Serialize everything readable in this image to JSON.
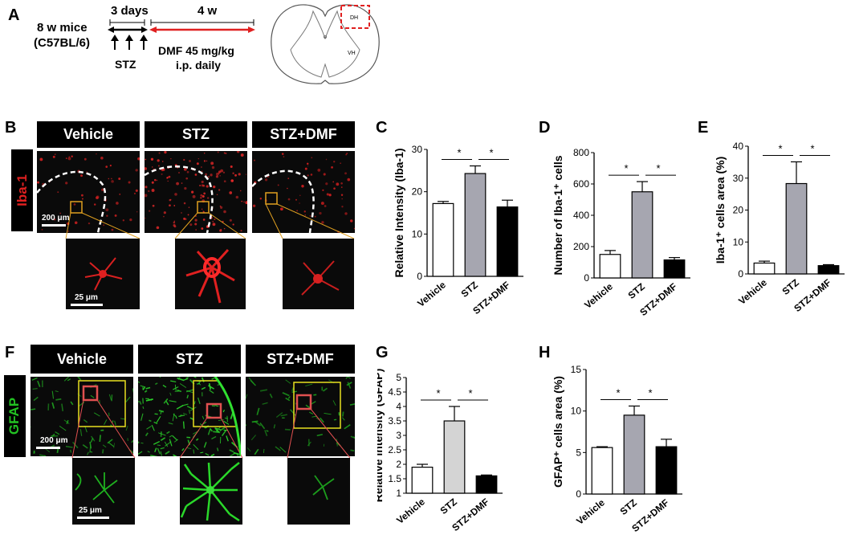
{
  "panels": {
    "A": "A",
    "B": "B",
    "C": "C",
    "D": "D",
    "E": "E",
    "F": "F",
    "G": "G",
    "H": "H"
  },
  "schematic": {
    "mice_line1": "8 w mice",
    "mice_line2": "(C57BL/6)",
    "days_label": "3 days",
    "weeks_label": "4 w",
    "stz_label": "STZ",
    "dmf_line1": "DMF 45 mg/kg",
    "dmf_line2": "i.p. daily",
    "dh_label": "DH",
    "vh_label": "VH",
    "arrow_color": "#e02020",
    "box_color": "#e02020"
  },
  "iba": {
    "stain": "Iba-1",
    "stain_color": "#e02020",
    "headers": [
      "Vehicle",
      "STZ",
      "STZ+DMF"
    ],
    "scale_large": "200 μm",
    "scale_small": "25 μm"
  },
  "gfap": {
    "stain": "GFAP",
    "stain_color": "#22c022",
    "headers": [
      "Vehicle",
      "STZ",
      "STZ+DMF"
    ],
    "scale_large": "200 μm",
    "scale_small": "25 μm"
  },
  "chart_data": [
    {
      "panel": "C",
      "type": "bar",
      "categories": [
        "Vehicle",
        "STZ",
        "STZ+DMF"
      ],
      "values": [
        17.2,
        24.3,
        16.4
      ],
      "errors": [
        0.5,
        1.8,
        1.6
      ],
      "colors": [
        "#ffffff",
        "#a6a6b0",
        "#000000"
      ],
      "ylabel": "Relative Intensity (Iba-1)",
      "ylim": [
        0,
        30
      ],
      "yticks": [
        "0",
        "10",
        "20",
        "30"
      ],
      "significance": [
        "*",
        "*"
      ]
    },
    {
      "panel": "D",
      "type": "bar",
      "categories": [
        "Vehicle",
        "STZ",
        "STZ+DMF"
      ],
      "values": [
        150,
        550,
        115
      ],
      "errors": [
        25,
        65,
        15
      ],
      "colors": [
        "#ffffff",
        "#a6a6b0",
        "#000000"
      ],
      "ylabel": "Number of Iba-1⁺ cells",
      "ylim": [
        0,
        800
      ],
      "yticks": [
        "0",
        "200",
        "400",
        "600",
        "800"
      ],
      "significance": [
        "*",
        "*"
      ]
    },
    {
      "panel": "E",
      "type": "bar",
      "categories": [
        "Vehicle",
        "STZ",
        "STZ+DMF"
      ],
      "values": [
        3.4,
        28.3,
        2.6
      ],
      "errors": [
        0.6,
        6.8,
        0.3
      ],
      "colors": [
        "#ffffff",
        "#a6a6b0",
        "#000000"
      ],
      "ylabel": "Iba-1⁺ cells area (%)",
      "ylim": [
        0,
        40
      ],
      "yticks": [
        "0",
        "10",
        "20",
        "30",
        "40"
      ],
      "significance": [
        "*",
        "*"
      ]
    },
    {
      "panel": "G",
      "type": "bar",
      "categories": [
        "Vehicle",
        "STZ",
        "STZ+DMF"
      ],
      "values": [
        1.9,
        3.5,
        1.6
      ],
      "errors": [
        0.1,
        0.5,
        0.03
      ],
      "colors": [
        "#ffffff",
        "#d4d4d4",
        "#000000"
      ],
      "ylabel": "Relative intensity (GFAP)",
      "ylim": [
        1,
        5
      ],
      "yticks": [
        "1",
        "1.5",
        "2",
        "2.5",
        "3",
        "3.5",
        "4",
        "4.5",
        "5"
      ],
      "significance": [
        "*",
        "*"
      ]
    },
    {
      "panel": "H",
      "type": "bar",
      "categories": [
        "Vehicle",
        "STZ",
        "STZ+DMF"
      ],
      "values": [
        5.6,
        9.5,
        5.7
      ],
      "errors": [
        0.1,
        1.1,
        0.9
      ],
      "colors": [
        "#ffffff",
        "#a6a6b0",
        "#000000"
      ],
      "ylabel": "GFAP⁺ cells area (%)",
      "ylim": [
        0,
        15
      ],
      "yticks": [
        "0",
        "5",
        "10",
        "15"
      ],
      "significance": [
        "*",
        "*"
      ]
    }
  ]
}
